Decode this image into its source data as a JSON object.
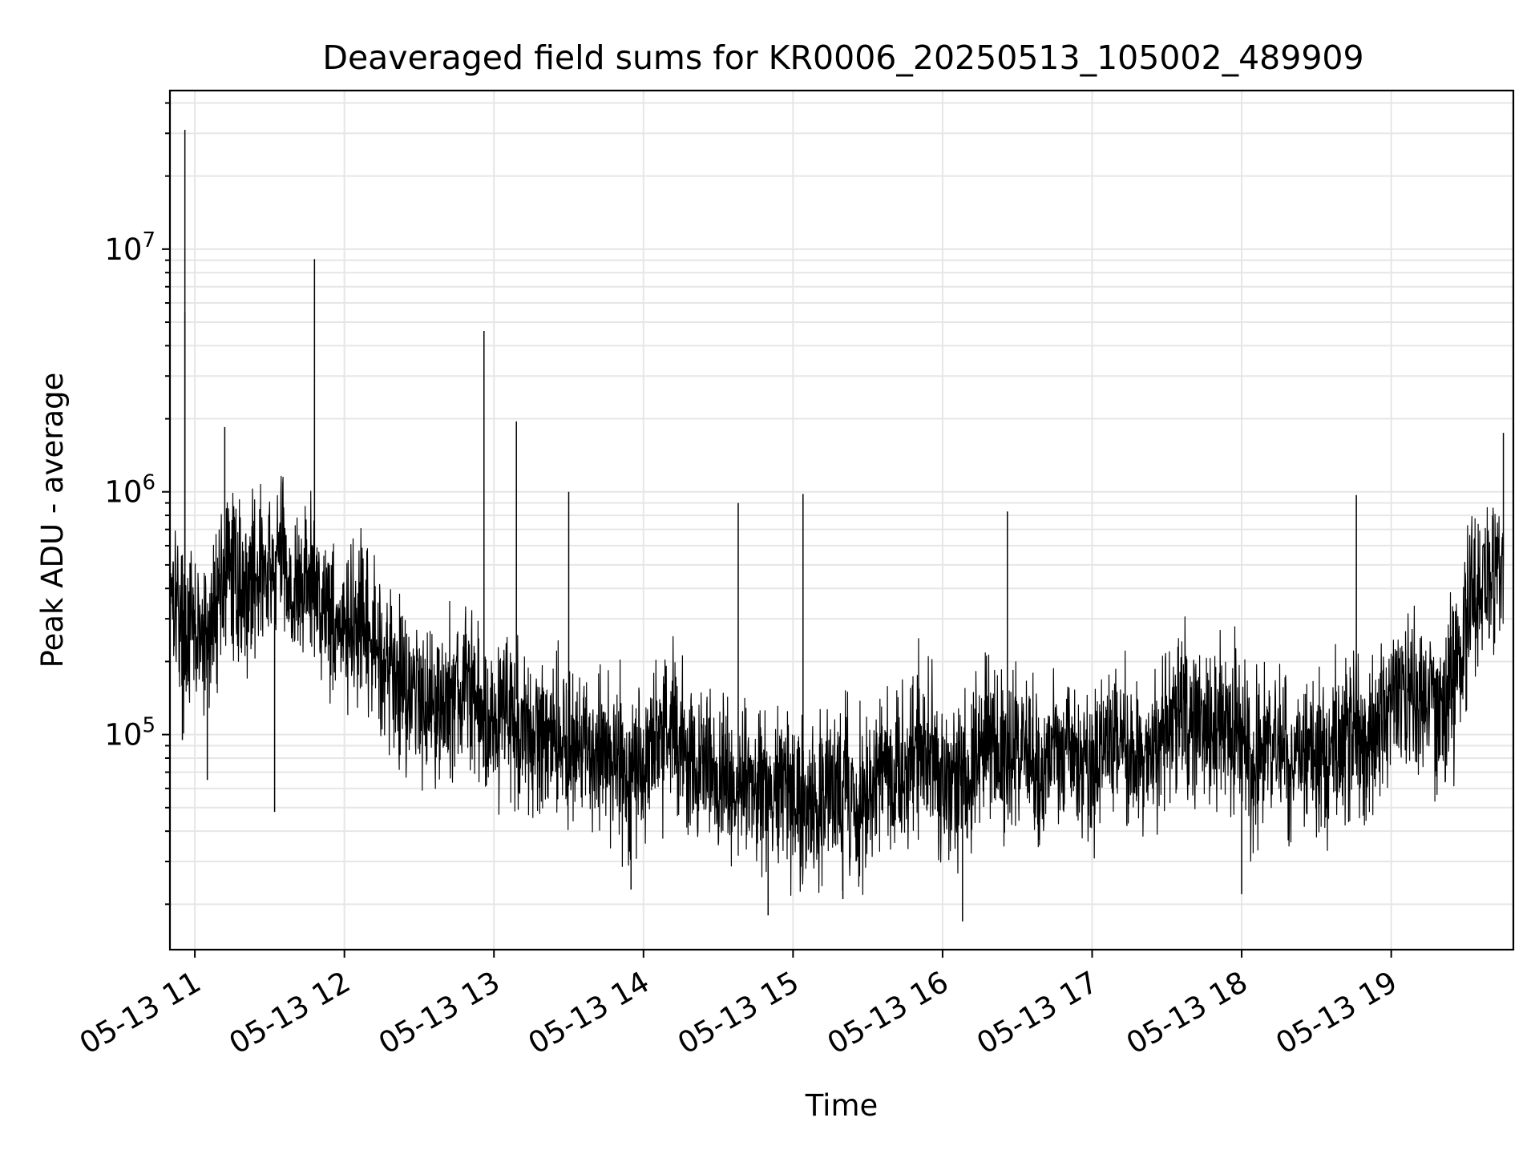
{
  "chart_data": {
    "type": "line",
    "title": "Deaveraged field sums for KR0006_20250513_105002_489909",
    "xlabel": "Time",
    "ylabel": "Peak ADU - average",
    "xscale": "time",
    "yscale": "log",
    "xlim": [
      "2025-05-13 10:50",
      "2025-05-13 19:49"
    ],
    "ylim": [
      13000,
      45000000
    ],
    "grid": true,
    "legend": "none",
    "x_ticks": [
      {
        "time": "2025-05-13 11:00",
        "label": "05-13 11"
      },
      {
        "time": "2025-05-13 12:00",
        "label": "05-13 12"
      },
      {
        "time": "2025-05-13 13:00",
        "label": "05-13 13"
      },
      {
        "time": "2025-05-13 14:00",
        "label": "05-13 14"
      },
      {
        "time": "2025-05-13 15:00",
        "label": "05-13 15"
      },
      {
        "time": "2025-05-13 16:00",
        "label": "05-13 16"
      },
      {
        "time": "2025-05-13 17:00",
        "label": "05-13 17"
      },
      {
        "time": "2025-05-13 18:00",
        "label": "05-13 18"
      },
      {
        "time": "2025-05-13 19:00",
        "label": "05-13 19"
      }
    ],
    "y_ticks": [
      {
        "value": 100000,
        "base": "10",
        "exp": "5"
      },
      {
        "value": 1000000,
        "base": "10",
        "exp": "6"
      },
      {
        "value": 10000000,
        "base": "10",
        "exp": "7"
      }
    ],
    "line_color": "#000000",
    "grid_color": "#e6e6e6",
    "series": [
      {
        "x": [
          "2025-05-13 10:50",
          "2025-05-13 10:55",
          "2025-05-13 11:00",
          "2025-05-13 11:05",
          "2025-05-13 11:10",
          "2025-05-13 11:15",
          "2025-05-13 11:20",
          "2025-05-13 11:25",
          "2025-05-13 11:30",
          "2025-05-13 11:35",
          "2025-05-13 11:40",
          "2025-05-13 11:45",
          "2025-05-13 11:50",
          "2025-05-13 11:55",
          "2025-05-13 12:00",
          "2025-05-13 12:05",
          "2025-05-13 12:10",
          "2025-05-13 12:15",
          "2025-05-13 12:20",
          "2025-05-13 12:25",
          "2025-05-13 12:30",
          "2025-05-13 12:35",
          "2025-05-13 12:40",
          "2025-05-13 12:45",
          "2025-05-13 12:50",
          "2025-05-13 12:55",
          "2025-05-13 13:00",
          "2025-05-13 13:05",
          "2025-05-13 13:10",
          "2025-05-13 13:15",
          "2025-05-13 13:20",
          "2025-05-13 13:25",
          "2025-05-13 13:30",
          "2025-05-13 13:35",
          "2025-05-13 13:40",
          "2025-05-13 13:45",
          "2025-05-13 13:50",
          "2025-05-13 13:55",
          "2025-05-13 14:00",
          "2025-05-13 14:05",
          "2025-05-13 14:10",
          "2025-05-13 14:15",
          "2025-05-13 14:20",
          "2025-05-13 14:25",
          "2025-05-13 14:30",
          "2025-05-13 14:35",
          "2025-05-13 14:40",
          "2025-05-13 14:45",
          "2025-05-13 14:50",
          "2025-05-13 14:55",
          "2025-05-13 15:00",
          "2025-05-13 15:05",
          "2025-05-13 15:10",
          "2025-05-13 15:15",
          "2025-05-13 15:20",
          "2025-05-13 15:25",
          "2025-05-13 15:30",
          "2025-05-13 15:35",
          "2025-05-13 15:40",
          "2025-05-13 15:45",
          "2025-05-13 15:50",
          "2025-05-13 15:55",
          "2025-05-13 16:00",
          "2025-05-13 16:05",
          "2025-05-13 16:10",
          "2025-05-13 16:15",
          "2025-05-13 16:20",
          "2025-05-13 16:25",
          "2025-05-13 16:30",
          "2025-05-13 16:35",
          "2025-05-13 16:40",
          "2025-05-13 16:45",
          "2025-05-13 16:50",
          "2025-05-13 16:55",
          "2025-05-13 17:00",
          "2025-05-13 17:05",
          "2025-05-13 17:10",
          "2025-05-13 17:15",
          "2025-05-13 17:20",
          "2025-05-13 17:25",
          "2025-05-13 17:30",
          "2025-05-13 17:35",
          "2025-05-13 17:40",
          "2025-05-13 17:45",
          "2025-05-13 17:50",
          "2025-05-13 17:55",
          "2025-05-13 18:00",
          "2025-05-13 18:05",
          "2025-05-13 18:10",
          "2025-05-13 18:15",
          "2025-05-13 18:20",
          "2025-05-13 18:25",
          "2025-05-13 18:30",
          "2025-05-13 18:35",
          "2025-05-13 18:40",
          "2025-05-13 18:45",
          "2025-05-13 18:50",
          "2025-05-13 18:55",
          "2025-05-13 19:00",
          "2025-05-13 19:05",
          "2025-05-13 19:10",
          "2025-05-13 19:15",
          "2025-05-13 19:20",
          "2025-05-13 19:25",
          "2025-05-13 19:30",
          "2025-05-13 19:35",
          "2025-05-13 19:40",
          "2025-05-13 19:45"
        ],
        "values": [
          500000,
          280000,
          260000,
          230000,
          420000,
          480000,
          380000,
          500000,
          420000,
          600000,
          350000,
          450000,
          380000,
          320000,
          250000,
          280000,
          240000,
          220000,
          180000,
          160000,
          150000,
          140000,
          130000,
          150000,
          160000,
          120000,
          110000,
          140000,
          100000,
          90000,
          110000,
          100000,
          90000,
          80000,
          85000,
          90000,
          75000,
          70000,
          80000,
          95000,
          110000,
          90000,
          75000,
          70000,
          68000,
          60000,
          62000,
          55000,
          60000,
          65000,
          55000,
          52000,
          50000,
          60000,
          55000,
          52000,
          58000,
          70000,
          65000,
          75000,
          90000,
          80000,
          60000,
          70000,
          65000,
          90000,
          85000,
          80000,
          95000,
          75000,
          70000,
          85000,
          95000,
          80000,
          75000,
          90000,
          100000,
          80000,
          85000,
          90000,
          95000,
          120000,
          110000,
          100000,
          100000,
          110000,
          90000,
          75000,
          80000,
          95000,
          75000,
          90000,
          85000,
          80000,
          95000,
          100000,
          90000,
          95000,
          150000,
          140000,
          140000,
          150000,
          120000,
          150000,
          300000,
          380000,
          450000,
          500000
        ]
      }
    ],
    "spikes": [
      {
        "x": "2025-05-13 10:56",
        "value": 31000000
      },
      {
        "x": "2025-05-13 10:56",
        "value": 5500000
      },
      {
        "x": "2025-05-13 11:12",
        "value": 1850000
      },
      {
        "x": "2025-05-13 11:48",
        "value": 9100000
      },
      {
        "x": "2025-05-13 12:56",
        "value": 4600000
      },
      {
        "x": "2025-05-13 13:09",
        "value": 1950000
      },
      {
        "x": "2025-05-13 13:30",
        "value": 1000000
      },
      {
        "x": "2025-05-13 14:38",
        "value": 900000
      },
      {
        "x": "2025-05-13 15:04",
        "value": 980000
      },
      {
        "x": "2025-05-13 16:26",
        "value": 830000
      },
      {
        "x": "2025-05-13 18:46",
        "value": 970000
      },
      {
        "x": "2025-05-13 19:45",
        "value": 1750000
      }
    ],
    "dips": [
      {
        "x": "2025-05-13 10:55",
        "value": 95000
      },
      {
        "x": "2025-05-13 11:05",
        "value": 65000
      },
      {
        "x": "2025-05-13 11:32",
        "value": 48000
      },
      {
        "x": "2025-05-13 13:55",
        "value": 23000
      },
      {
        "x": "2025-05-13 14:50",
        "value": 18000
      },
      {
        "x": "2025-05-13 15:20",
        "value": 21000
      },
      {
        "x": "2025-05-13 16:08",
        "value": 17000
      },
      {
        "x": "2025-05-13 18:00",
        "value": 22000
      }
    ]
  }
}
